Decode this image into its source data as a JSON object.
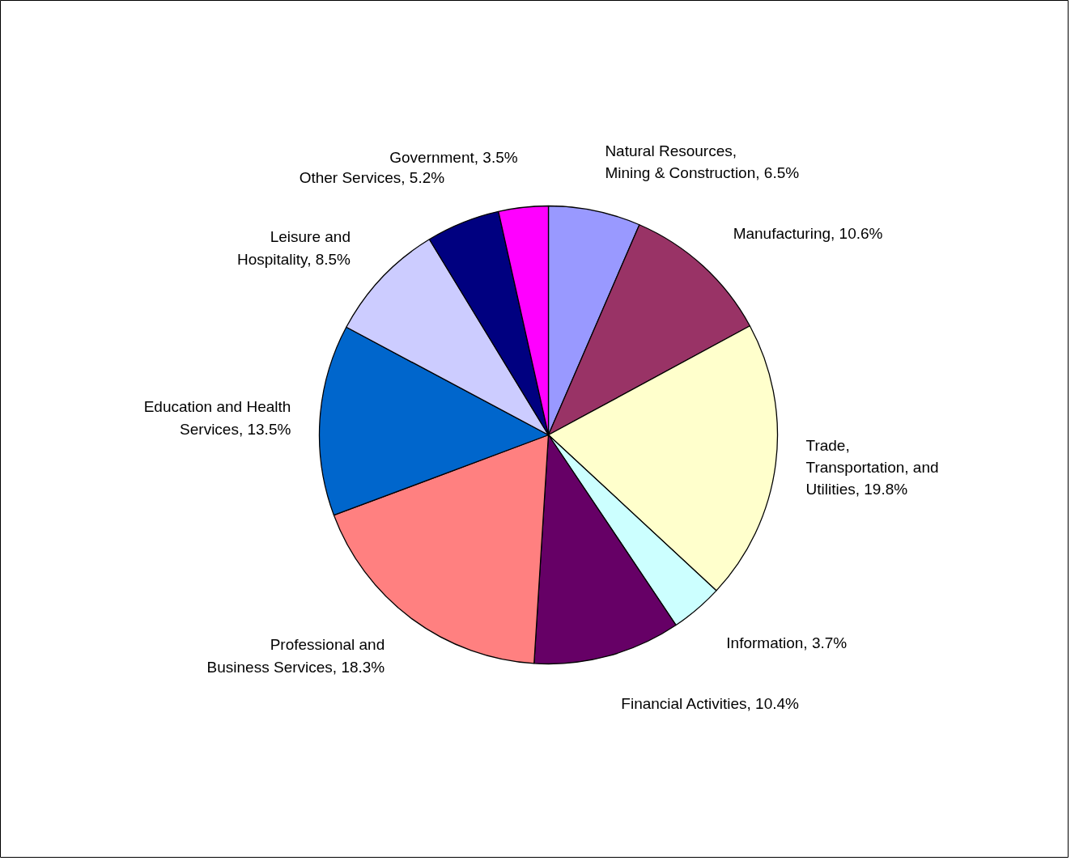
{
  "chart_data": {
    "type": "pie",
    "categories": [
      "Natural Resources, Mining & Construction",
      "Manufacturing",
      "Trade, Transportation, and Utilities",
      "Information",
      "Financial Activities",
      "Professional and Business Services",
      "Education and Health Services",
      "Leisure and Hospitality",
      "Other Services",
      "Government"
    ],
    "values": [
      6.5,
      10.6,
      19.8,
      3.7,
      10.4,
      18.3,
      13.5,
      8.5,
      5.2,
      3.5
    ],
    "value_labels": [
      "6.5%",
      "10.6%",
      "19.8%",
      "3.7%",
      "10.4%",
      "18.3%",
      "13.5%",
      "8.5%",
      "5.2%",
      "3.5%"
    ],
    "colors": [
      "#9999ff",
      "#993366",
      "#ffffcc",
      "#ccffff",
      "#660066",
      "#ff8080",
      "#0066cc",
      "#ccccff",
      "#000080",
      "#ff00ff"
    ]
  }
}
